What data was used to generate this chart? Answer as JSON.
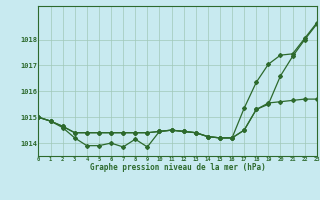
{
  "title": "Graphe pression niveau de la mer (hPa)",
  "background_color": "#c8eaf0",
  "plot_bg_color": "#c8eaf0",
  "line_color": "#2d6a2d",
  "grid_color": "#a0c8b8",
  "text_color": "#2d6a2d",
  "hours": [
    0,
    1,
    2,
    3,
    4,
    5,
    6,
    7,
    8,
    9,
    10,
    11,
    12,
    13,
    14,
    15,
    16,
    17,
    18,
    19,
    20,
    21,
    22,
    23
  ],
  "line1": [
    1015.0,
    1014.85,
    1014.6,
    1014.2,
    1013.9,
    1013.9,
    1014.0,
    1013.85,
    1014.15,
    1013.85,
    1014.45,
    1014.5,
    1014.45,
    1014.4,
    1014.25,
    1014.2,
    1014.2,
    1014.5,
    1015.3,
    1015.5,
    1016.6,
    1017.35,
    1018.0,
    1018.6
  ],
  "line2": [
    1015.0,
    1014.85,
    1014.65,
    1014.4,
    1014.4,
    1014.4,
    1014.4,
    1014.4,
    1014.4,
    1014.4,
    1014.45,
    1014.5,
    1014.45,
    1014.4,
    1014.25,
    1014.2,
    1014.2,
    1014.5,
    1015.3,
    1015.55,
    1015.6,
    1015.65,
    1015.7,
    1015.7
  ],
  "line3": [
    1015.0,
    1014.85,
    1014.65,
    1014.4,
    1014.4,
    1014.4,
    1014.4,
    1014.4,
    1014.4,
    1014.4,
    1014.45,
    1014.5,
    1014.45,
    1014.4,
    1014.25,
    1014.2,
    1014.2,
    1015.35,
    1016.35,
    1017.05,
    1017.4,
    1017.45,
    1018.05,
    1018.65
  ],
  "ylim": [
    1013.5,
    1019.3
  ],
  "yticks": [
    1014,
    1015,
    1016,
    1017,
    1018
  ],
  "xlim": [
    0,
    23
  ]
}
